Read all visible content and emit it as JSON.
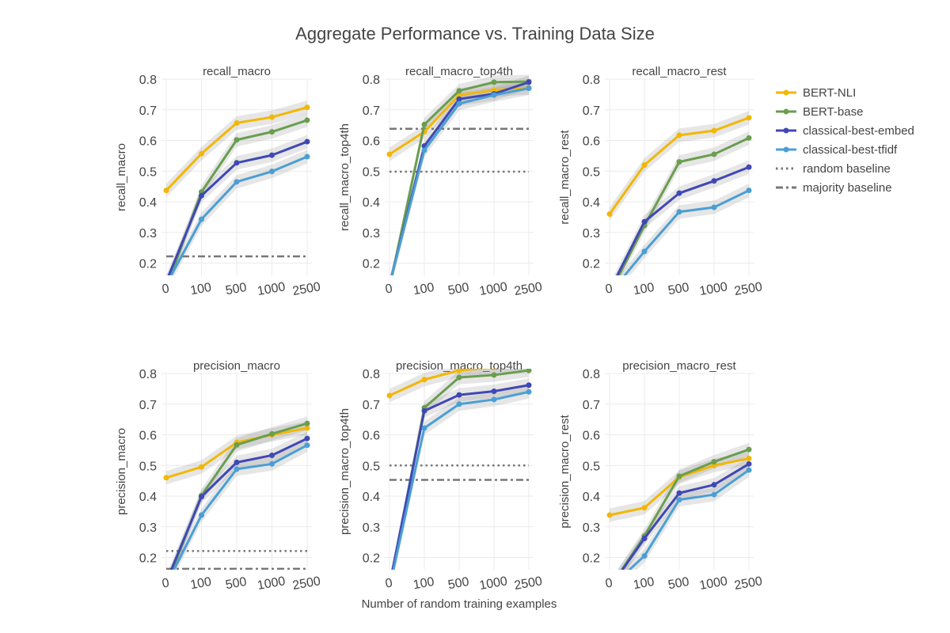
{
  "figure": {
    "title": "Aggregate Performance vs. Training Data Size",
    "xlabel": "Number of random training examples"
  },
  "legend": {
    "items": [
      {
        "name": "BERT-NLI",
        "color": "#F2B705",
        "dash": "solid"
      },
      {
        "name": "BERT-base",
        "color": "#6A9E4F",
        "dash": "solid"
      },
      {
        "name": "classical-best-embed",
        "color": "#3F48B4",
        "dash": "solid"
      },
      {
        "name": "classical-best-tfidf",
        "color": "#4A9FD4",
        "dash": "solid"
      },
      {
        "name": "random baseline",
        "color": "#777777",
        "dash": "dot"
      },
      {
        "name": "majority baseline",
        "color": "#777777",
        "dash": "dashdot"
      }
    ]
  },
  "chart_data": [
    {
      "type": "line",
      "title": "recall_macro",
      "ylabel": "recall_macro",
      "categories": [
        "0",
        "100",
        "500",
        "1000",
        "2500"
      ],
      "ylim": [
        0.16,
        0.8
      ],
      "yticks": [
        "0.2",
        "0.3",
        "0.4",
        "0.5",
        "0.6",
        "0.7",
        "0.8"
      ],
      "series": [
        {
          "name": "BERT-NLI",
          "values": [
            0.437,
            0.557,
            0.657,
            0.676,
            0.708
          ]
        },
        {
          "name": "BERT-base",
          "values": [
            0.12,
            0.432,
            0.602,
            0.628,
            0.666
          ]
        },
        {
          "name": "classical-best-embed",
          "values": [
            0.14,
            0.42,
            0.527,
            0.552,
            0.596
          ]
        },
        {
          "name": "classical-best-tfidf",
          "values": [
            0.13,
            0.343,
            0.465,
            0.499,
            0.547
          ]
        }
      ],
      "baselines": {
        "random": null,
        "majority": 0.222
      }
    },
    {
      "type": "line",
      "title": "recall_macro_top4th",
      "ylabel": "recall_macro_top4th",
      "categories": [
        "0",
        "100",
        "500",
        "1000",
        "2500"
      ],
      "ylim": [
        0.16,
        0.8
      ],
      "yticks": [
        "0.2",
        "0.3",
        "0.4",
        "0.5",
        "0.6",
        "0.7",
        "0.8"
      ],
      "series": [
        {
          "name": "BERT-NLI",
          "values": [
            0.555,
            0.628,
            0.748,
            0.764,
            0.772
          ]
        },
        {
          "name": "BERT-base",
          "values": [
            0.12,
            0.652,
            0.762,
            0.79,
            0.792
          ]
        },
        {
          "name": "classical-best-embed",
          "values": [
            0.13,
            0.582,
            0.735,
            0.752,
            0.79
          ]
        },
        {
          "name": "classical-best-tfidf",
          "values": [
            0.13,
            0.568,
            0.72,
            0.748,
            0.77
          ]
        }
      ],
      "baselines": {
        "random": 0.498,
        "majority": 0.638
      }
    },
    {
      "type": "line",
      "title": "recall_macro_rest",
      "ylabel": "recall_macro_rest",
      "categories": [
        "0",
        "100",
        "500",
        "1000",
        "2500"
      ],
      "ylim": [
        0.16,
        0.8
      ],
      "yticks": [
        "0.2",
        "0.3",
        "0.4",
        "0.5",
        "0.6",
        "0.7",
        "0.8"
      ],
      "series": [
        {
          "name": "BERT-NLI",
          "values": [
            0.36,
            0.52,
            0.617,
            0.632,
            0.674
          ]
        },
        {
          "name": "BERT-base",
          "values": [
            0.1,
            0.322,
            0.53,
            0.555,
            0.608
          ]
        },
        {
          "name": "classical-best-embed",
          "values": [
            0.11,
            0.335,
            0.428,
            0.468,
            0.513
          ]
        },
        {
          "name": "classical-best-tfidf",
          "values": [
            0.1,
            0.238,
            0.367,
            0.382,
            0.437
          ]
        }
      ],
      "baselines": {
        "random": null,
        "majority": null
      }
    },
    {
      "type": "line",
      "title": "precision_macro",
      "ylabel": "precision_macro",
      "categories": [
        "0",
        "100",
        "500",
        "1000",
        "2500"
      ],
      "ylim": [
        0.16,
        0.8
      ],
      "yticks": [
        "0.2",
        "0.3",
        "0.4",
        "0.5",
        "0.6",
        "0.7",
        "0.8"
      ],
      "series": [
        {
          "name": "BERT-NLI",
          "values": [
            0.46,
            0.495,
            0.575,
            0.6,
            0.622
          ]
        },
        {
          "name": "BERT-base",
          "values": [
            0.11,
            0.402,
            0.567,
            0.603,
            0.637
          ]
        },
        {
          "name": "classical-best-embed",
          "values": [
            0.12,
            0.398,
            0.51,
            0.533,
            0.588
          ]
        },
        {
          "name": "classical-best-tfidf",
          "values": [
            0.11,
            0.338,
            0.488,
            0.505,
            0.566
          ]
        }
      ],
      "baselines": {
        "random": 0.221,
        "majority": 0.163
      }
    },
    {
      "type": "line",
      "title": "precision_macro_top4th",
      "ylabel": "precision_macro_top4th",
      "categories": [
        "0",
        "100",
        "500",
        "1000",
        "2500"
      ],
      "ylim": [
        0.16,
        0.8
      ],
      "yticks": [
        "0.2",
        "0.3",
        "0.4",
        "0.5",
        "0.6",
        "0.7",
        "0.8"
      ],
      "series": [
        {
          "name": "BERT-NLI",
          "values": [
            0.728,
            0.78,
            0.81,
            0.82,
            0.83
          ]
        },
        {
          "name": "BERT-base",
          "values": [
            0.1,
            0.688,
            0.787,
            0.795,
            0.81
          ]
        },
        {
          "name": "classical-best-embed",
          "values": [
            0.11,
            0.678,
            0.73,
            0.742,
            0.762
          ]
        },
        {
          "name": "classical-best-tfidf",
          "values": [
            0.1,
            0.622,
            0.7,
            0.715,
            0.74
          ]
        }
      ],
      "baselines": {
        "random": 0.5,
        "majority": 0.453
      }
    },
    {
      "type": "line",
      "title": "precision_macro_rest",
      "ylabel": "precision_macro_rest",
      "categories": [
        "0",
        "100",
        "500",
        "1000",
        "2500"
      ],
      "ylim": [
        0.16,
        0.8
      ],
      "yticks": [
        "0.2",
        "0.3",
        "0.4",
        "0.5",
        "0.6",
        "0.7",
        "0.8"
      ],
      "series": [
        {
          "name": "BERT-NLI",
          "values": [
            0.338,
            0.362,
            0.462,
            0.5,
            0.523
          ]
        },
        {
          "name": "BERT-base",
          "values": [
            0.1,
            0.27,
            0.465,
            0.512,
            0.552
          ]
        },
        {
          "name": "classical-best-embed",
          "values": [
            0.1,
            0.262,
            0.41,
            0.437,
            0.505
          ]
        },
        {
          "name": "classical-best-tfidf",
          "values": [
            0.1,
            0.205,
            0.388,
            0.405,
            0.485
          ]
        }
      ],
      "baselines": {
        "random": null,
        "majority": null
      }
    }
  ]
}
